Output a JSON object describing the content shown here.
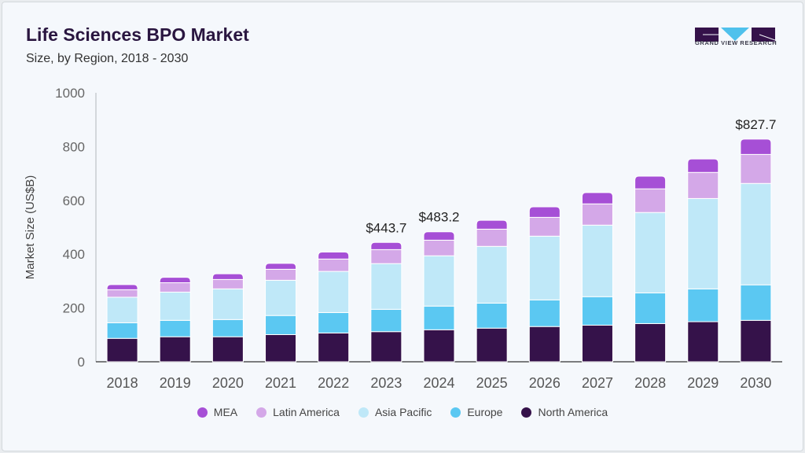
{
  "header": {
    "title": "Life Sciences BPO Market",
    "subtitle": "Size, by Region, 2018 - 2030"
  },
  "logo": {
    "text": "GRAND VIEW RESEARCH"
  },
  "chart_data": {
    "type": "bar",
    "stacked": true,
    "title": "Life Sciences BPO Market",
    "subtitle": "Size, by Region, 2018 - 2030",
    "xlabel": "",
    "ylabel": "Market Size (US$B)",
    "ylim": [
      0,
      1000
    ],
    "yticks": [
      "0",
      "200",
      "400",
      "600",
      "800",
      "1000"
    ],
    "categories": [
      "2018",
      "2019",
      "2020",
      "2021",
      "2022",
      "2023",
      "2024",
      "2025",
      "2026",
      "2027",
      "2028",
      "2029",
      "2030"
    ],
    "series": [
      {
        "name": "North America",
        "color": "#35124a",
        "values": [
          87,
          93,
          93,
          101,
          107,
          112,
          119,
          125,
          131,
          136,
          142,
          149,
          154
        ]
      },
      {
        "name": "Europe",
        "color": "#5bc8f2",
        "values": [
          58,
          61,
          64,
          71,
          76,
          83,
          88,
          93,
          99,
          106,
          114,
          122,
          132
        ]
      },
      {
        "name": "Asia Pacific",
        "color": "#bfe8f8",
        "values": [
          95,
          105,
          114,
          131,
          153,
          170,
          187,
          211,
          237,
          266,
          299,
          336,
          377
        ]
      },
      {
        "name": "Latin America",
        "color": "#d4a8e8",
        "values": [
          28,
          35,
          35,
          41,
          46,
          52,
          58,
          64,
          70,
          79,
          88,
          97,
          108
        ]
      },
      {
        "name": "MEA",
        "color": "#a64fd6",
        "values": [
          19,
          20,
          21,
          22,
          26,
          26.7,
          31.2,
          33,
          39,
          42,
          47,
          50,
          56.7
        ]
      }
    ],
    "annotations": [
      {
        "category": "2023",
        "text": "$443.7",
        "value": 443.7
      },
      {
        "category": "2024",
        "text": "$483.2",
        "value": 483.2
      },
      {
        "category": "2030",
        "text": "$827.7",
        "value": 827.7
      }
    ],
    "legend": {
      "placement": "bottom",
      "order": [
        "MEA",
        "Latin America",
        "Asia Pacific",
        "Europe",
        "North America"
      ]
    },
    "grid": false
  }
}
